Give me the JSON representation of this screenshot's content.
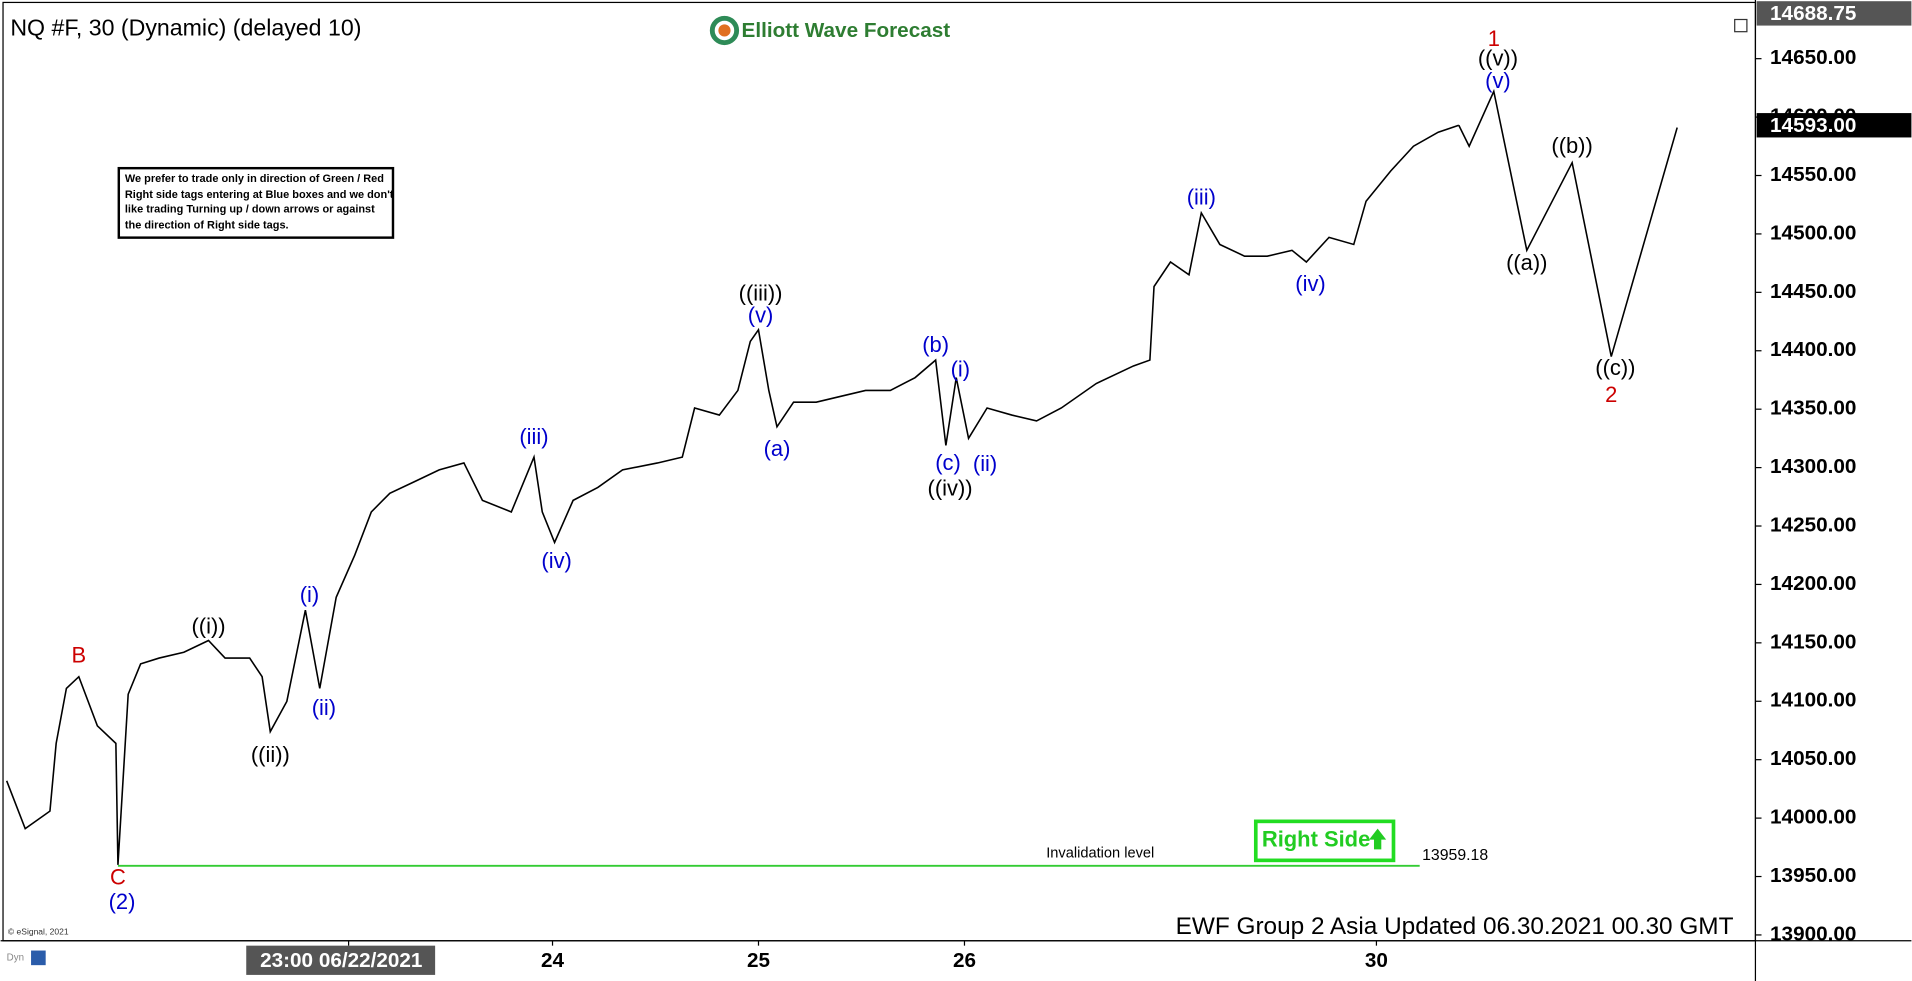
{
  "chart_data": {
    "type": "line",
    "title": "NQ #F, 30 (Dynamic) (delayed 10)",
    "brand": "Elliott Wave Forecast",
    "note": [
      "We prefer to trade only in direction of Green / Red",
      "Right side tags entering at Blue boxes and we don't",
      "like trading Turning up / down arrows or against",
      "the direction of Right side tags."
    ],
    "right_side_tag": "Right Side",
    "footer": "EWF Group 2 Asia Updated 06.30.2021 00.30 GMT",
    "copyright": "© eSignal, 2021",
    "corner_label": "Dyn",
    "xlim": [
      -1.65,
      6.84
    ],
    "ylim": [
      13895,
      14695
    ],
    "xticks": [
      {
        "value": 0.01,
        "label": "23:00 06/22/2021"
      },
      {
        "value": 1,
        "label": "24"
      },
      {
        "value": 2,
        "label": "25"
      },
      {
        "value": 3,
        "label": "26"
      },
      {
        "value": 5,
        "label": "30"
      }
    ],
    "yticks": [
      {
        "value": 13900,
        "label": "13900.00"
      },
      {
        "value": 13950,
        "label": "13950.00"
      },
      {
        "value": 14000,
        "label": "14000.00"
      },
      {
        "value": 14050,
        "label": "14050.00"
      },
      {
        "value": 14100,
        "label": "14100.00"
      },
      {
        "value": 14150,
        "label": "14150.00"
      },
      {
        "value": 14200,
        "label": "14200.00"
      },
      {
        "value": 14250,
        "label": "14250.00"
      },
      {
        "value": 14300,
        "label": "14300.00"
      },
      {
        "value": 14350,
        "label": "14350.00"
      },
      {
        "value": 14400,
        "label": "14400.00"
      },
      {
        "value": 14450,
        "label": "14450.00"
      },
      {
        "value": 14500,
        "label": "14500.00"
      },
      {
        "value": 14550,
        "label": "14550.00"
      },
      {
        "value": 14600,
        "label": "14600.00"
      },
      {
        "value": 14650,
        "label": "14650.00"
      }
    ],
    "price_tags": [
      {
        "value": 14688.75,
        "color": "#555555"
      },
      {
        "value": 14593,
        "label": "14593.00",
        "color": "#000000"
      }
    ],
    "price": {
      "color": "#000000",
      "x": [
        -1.65,
        -1.56,
        -1.44,
        -1.41,
        -1.36,
        -1.3,
        -1.21,
        -1.12,
        -1.11,
        -1.06,
        -1.0,
        -0.91,
        -0.79,
        -0.67,
        -0.59,
        -0.47,
        -0.41,
        -0.37,
        -0.29,
        -0.2,
        -0.13,
        -0.05,
        0.04,
        0.12,
        0.21,
        0.33,
        0.45,
        0.57,
        0.66,
        0.8,
        0.91,
        0.95,
        1.01,
        1.1,
        1.22,
        1.34,
        1.51,
        1.63,
        1.69,
        1.81,
        1.9,
        1.96,
        2.0,
        2.05,
        2.09,
        2.17,
        2.28,
        2.4,
        2.52,
        2.64,
        2.76,
        2.86,
        2.91,
        2.96,
        3.02,
        3.11,
        3.23,
        3.35,
        3.47,
        3.64,
        3.82,
        3.9,
        3.92,
        4.0,
        4.09,
        4.15,
        4.24,
        4.36,
        4.47,
        4.59,
        4.66,
        4.77,
        4.89,
        4.95,
        5.07,
        5.18,
        5.3,
        5.4
      ],
      "values": [
        14032,
        13991,
        14006,
        14064,
        14111,
        14121,
        14079,
        14064,
        13960,
        14106,
        14132,
        14137,
        14142,
        14152,
        14137,
        14137,
        14121,
        14074,
        14100,
        14178,
        14111,
        14189,
        14225,
        14262,
        14278,
        14288,
        14298,
        14304,
        14272,
        14262,
        14309,
        14262,
        14236,
        14272,
        14283,
        14298,
        14304,
        14309,
        14351,
        14345,
        14366,
        14408,
        14418,
        14366,
        14335,
        14356,
        14356,
        14361,
        14366,
        14366,
        14377,
        14392,
        14319,
        14377,
        14325,
        14351,
        14345,
        14340,
        14351,
        14372,
        14387,
        14392,
        14455,
        14476,
        14465,
        14518,
        14491,
        14481,
        14481,
        14486,
        14476,
        14497,
        14491,
        14528,
        14554,
        14575,
        14587,
        14593
      ]
    },
    "projection": {
      "color": "#000000",
      "x": [
        5.4,
        5.45,
        5.57,
        5.73,
        5.95,
        6.14,
        6.46
      ],
      "values": [
        14593,
        14575,
        14622,
        14486,
        14561,
        14395,
        14591
      ]
    },
    "invalidation": {
      "label": "Invalidation level",
      "value": 13959.18,
      "x": [
        -1.11,
        5.21
      ],
      "color": "#33cc33"
    },
    "annotations": [
      {
        "text": "B",
        "color": "#cc0000",
        "x": -1.3,
        "y": 14138
      },
      {
        "text": "C",
        "color": "#cc0000",
        "x": -1.11,
        "y": 13948
      },
      {
        "text": "(2)",
        "color": "#0000cc",
        "x": -1.09,
        "y": 13927
      },
      {
        "text": "((i))",
        "color": "#000000",
        "x": -0.67,
        "y": 14163
      },
      {
        "text": "((ii))",
        "color": "#000000",
        "x": -0.37,
        "y": 14053
      },
      {
        "text": "(i)",
        "color": "#0000cc",
        "x": -0.18,
        "y": 14190
      },
      {
        "text": "(ii)",
        "color": "#0000cc",
        "x": -0.11,
        "y": 14093
      },
      {
        "text": "(iii)",
        "color": "#0000cc",
        "x": 0.91,
        "y": 14325
      },
      {
        "text": "(iv)",
        "color": "#0000cc",
        "x": 1.02,
        "y": 14219
      },
      {
        "text": "((iii))",
        "color": "#000000",
        "x": 2.01,
        "y": 14448
      },
      {
        "text": "(v)",
        "color": "#0000cc",
        "x": 2.01,
        "y": 14429
      },
      {
        "text": "(a)",
        "color": "#0000cc",
        "x": 2.09,
        "y": 14315
      },
      {
        "text": "(b)",
        "color": "#0000cc",
        "x": 2.86,
        "y": 14404
      },
      {
        "text": "(i)",
        "color": "#0000cc",
        "x": 2.98,
        "y": 14383
      },
      {
        "text": "(c)",
        "color": "#0000cc",
        "x": 2.92,
        "y": 14303
      },
      {
        "text": "(ii)",
        "color": "#0000cc",
        "x": 3.1,
        "y": 14302
      },
      {
        "text": "((iv))",
        "color": "#000000",
        "x": 2.93,
        "y": 14281
      },
      {
        "text": "(iii)",
        "color": "#0000cc",
        "x": 4.15,
        "y": 14530
      },
      {
        "text": "(iv)",
        "color": "#0000cc",
        "x": 4.68,
        "y": 14456
      },
      {
        "text": "1",
        "color": "#cc0000",
        "x": 5.57,
        "y": 14666
      },
      {
        "text": "((v))",
        "color": "#000000",
        "x": 5.59,
        "y": 14649
      },
      {
        "text": "(v)",
        "color": "#0000cc",
        "x": 5.59,
        "y": 14630
      },
      {
        "text": "((a))",
        "color": "#000000",
        "x": 5.73,
        "y": 14474
      },
      {
        "text": "((b))",
        "color": "#000000",
        "x": 5.95,
        "y": 14574
      },
      {
        "text": "((c))",
        "color": "#000000",
        "x": 6.16,
        "y": 14384
      },
      {
        "text": "2",
        "color": "#cc0000",
        "x": 6.14,
        "y": 14361
      }
    ]
  }
}
